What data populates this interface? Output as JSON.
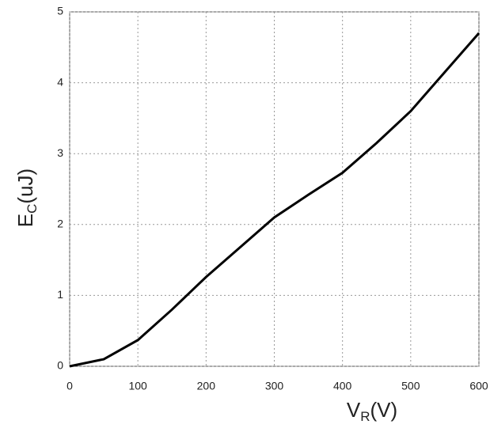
{
  "chart_data": {
    "type": "line",
    "x_label": [
      "V",
      "R",
      "(V)"
    ],
    "y_label": [
      "E",
      "C",
      "(uJ)"
    ],
    "x": [
      0,
      50,
      100,
      150,
      200,
      250,
      300,
      350,
      400,
      450,
      500,
      550,
      600
    ],
    "series": [
      {
        "color": "#000000",
        "values": [
          0,
          0.1,
          0.37,
          0.8,
          1.26,
          1.68,
          2.1,
          2.42,
          2.73,
          3.15,
          3.6,
          4.15,
          4.7
        ]
      }
    ],
    "xlim": [
      0,
      600
    ],
    "xticks": [
      0,
      100,
      200,
      300,
      400,
      500,
      600
    ],
    "ylim": [
      0,
      5
    ],
    "yticks": [
      0,
      1,
      2,
      3,
      4,
      5
    ],
    "grid": true
  }
}
